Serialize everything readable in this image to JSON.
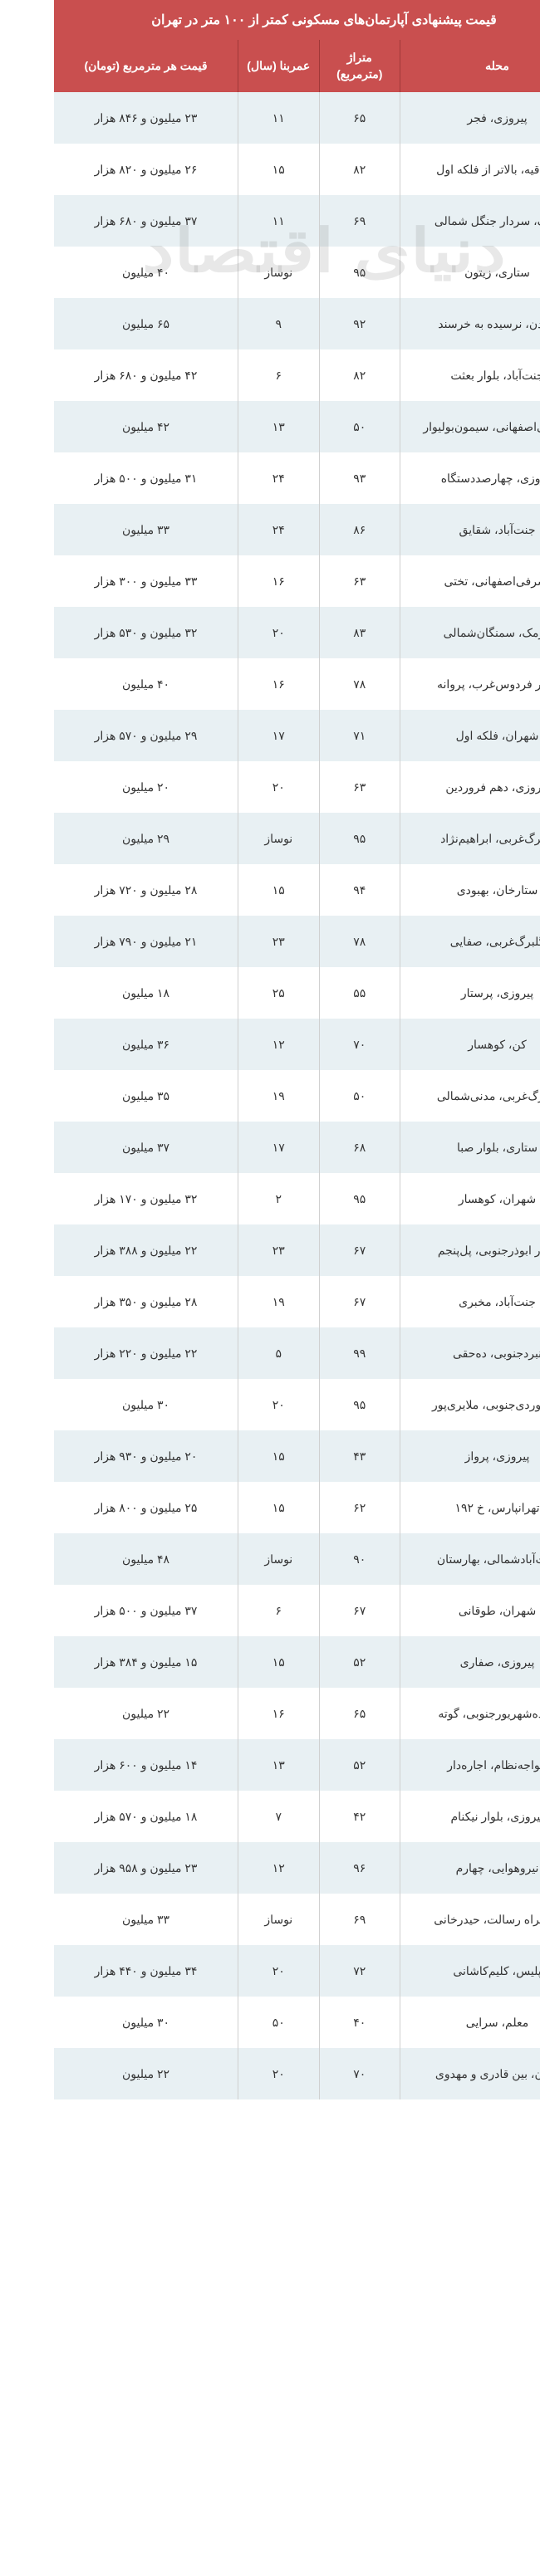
{
  "title": "قیمت پیشنهادی آپارتمان‌های مسکونی کمتر از ۱۰۰ متر در تهران",
  "watermark": "دنیای اقتصاد",
  "columns": {
    "mahale": "محله",
    "metraj": "متراژ (مترمربع)",
    "omr": "عمربنا (سال)",
    "gheymat": "قیمت هر مترمربع (تومان)"
  },
  "colors": {
    "header_bg": "#c94f4f",
    "header_text": "#ffffff",
    "row_odd": "#e8f0f3",
    "row_even": "#ffffff",
    "cell_text": "#333333",
    "border": "#d0d0d0"
  },
  "rows": [
    {
      "mahale": "پیروزی، فجر",
      "metraj": "۶۵",
      "omr": "۱۱",
      "gheymat": "۲۳ میلیون و ۸۴۶ هزار"
    },
    {
      "mahale": "صادقیه، بالاتر از فلکه اول",
      "metraj": "۸۲",
      "omr": "۱۵",
      "gheymat": "۲۶ میلیون و ۸۲۰ هزار"
    },
    {
      "mahale": "پونک، سردار جنگل شمالی",
      "metraj": "۶۹",
      "omr": "۱۱",
      "gheymat": "۳۷ میلیون و ۶۸۰ هزار"
    },
    {
      "mahale": "ستاری، زیتون",
      "metraj": "۹۵",
      "omr": "نوساز",
      "gheymat": "۴۰ میلیون"
    },
    {
      "mahale": "جردن، نرسیده به خرسند",
      "metraj": "۹۲",
      "omr": "۹",
      "gheymat": "۶۵ میلیون"
    },
    {
      "mahale": "جنت‌آباد، بلوار بعثت",
      "metraj": "۸۲",
      "omr": "۶",
      "gheymat": "۴۲ میلیون و ۶۸۰ هزار"
    },
    {
      "mahale": "اشرفی‌اصفهانی، سیمون‌بولیوار",
      "metraj": "۵۰",
      "omr": "۱۳",
      "gheymat": "۴۲ میلیون"
    },
    {
      "mahale": "پیروزی، چهارصددستگاه",
      "metraj": "۹۳",
      "omr": "۲۴",
      "gheymat": "۳۱ میلیون و ۵۰۰ هزار"
    },
    {
      "mahale": "جنت‌آباد، شقایق",
      "metraj": "۸۶",
      "omr": "۲۴",
      "gheymat": "۳۳ میلیون"
    },
    {
      "mahale": "اشرفی‌اصفهانی، تختی",
      "metraj": "۶۳",
      "omr": "۱۶",
      "gheymat": "۳۳ میلیون و ۳۰۰ هزار"
    },
    {
      "mahale": "نارمک، سمنگان‌شمالی",
      "metraj": "۸۳",
      "omr": "۲۰",
      "gheymat": "۳۲ میلیون و ۵۳۰ هزار"
    },
    {
      "mahale": "بلوار فردوس‌غرب، پروانه",
      "metraj": "۷۸",
      "omr": "۱۶",
      "gheymat": "۴۰ میلیون"
    },
    {
      "mahale": "شهران، فلکه اول",
      "metraj": "۷۱",
      "omr": "۱۷",
      "gheymat": "۲۹ میلیون و ۵۷۰ هزار"
    },
    {
      "mahale": "پیروزی، دهم فروردین",
      "metraj": "۶۳",
      "omr": "۲۰",
      "gheymat": "۲۰ میلیون"
    },
    {
      "mahale": "گلبرگ‌غربی، ابراهیم‌نژاد",
      "metraj": "۹۵",
      "omr": "نوساز",
      "gheymat": "۲۹ میلیون"
    },
    {
      "mahale": "ستارخان، بهبودی",
      "metraj": "۹۴",
      "omr": "۱۵",
      "gheymat": "۲۸ میلیون و ۷۲۰ هزار"
    },
    {
      "mahale": "گلبرگ‌غربی، صفایی",
      "metraj": "۷۸",
      "omr": "۲۳",
      "gheymat": "۲۱ میلیون و ۷۹۰ هزار"
    },
    {
      "mahale": "پیروزی، پرستار",
      "metraj": "۵۵",
      "omr": "۲۵",
      "gheymat": "۱۸ میلیون"
    },
    {
      "mahale": "کن، کوهسار",
      "metraj": "۷۰",
      "omr": "۱۲",
      "gheymat": "۳۶ میلیون"
    },
    {
      "mahale": "گلبرگ‌غربی، مدنی‌شمالی",
      "metraj": "۵۰",
      "omr": "۱۹",
      "gheymat": "۳۵ میلیون"
    },
    {
      "mahale": "ستاری، بلوار صبا",
      "metraj": "۶۸",
      "omr": "۱۷",
      "gheymat": "۳۷ میلیون"
    },
    {
      "mahale": "شهران، کوهسار",
      "metraj": "۹۵",
      "omr": "۲",
      "gheymat": "۳۲ میلیون و ۱۷۰ هزار"
    },
    {
      "mahale": "بلوار ابوذرجنوبی، پل‌پنجم",
      "metraj": "۶۷",
      "omr": "۲۳",
      "gheymat": "۲۲ میلیون و ۳۸۸ هزار"
    },
    {
      "mahale": "جنت‌آباد، مخبری",
      "metraj": "۶۷",
      "omr": "۱۹",
      "gheymat": "۲۸ میلیون و ۳۵۰ هزار"
    },
    {
      "mahale": "نبردجنوبی، ده‌حقی",
      "metraj": "۹۹",
      "omr": "۵",
      "gheymat": "۲۲ میلیون و ۲۲۰ هزار"
    },
    {
      "mahale": "سهروردی‌جنوبی، ملایری‌پور",
      "metraj": "۹۵",
      "omr": "۲۰",
      "gheymat": "۳۰ میلیون"
    },
    {
      "mahale": "پیروزی، پرواز",
      "metraj": "۴۳",
      "omr": "۱۵",
      "gheymat": "۲۰ میلیون و ۹۳۰ هزار"
    },
    {
      "mahale": "تهرانپارس، خ ۱۹۲",
      "metraj": "۶۲",
      "omr": "۱۵",
      "gheymat": "۲۵ میلیون و ۸۰۰ هزار"
    },
    {
      "mahale": "جنت‌آبادشمالی، بهارستان",
      "metraj": "۹۰",
      "omr": "نوساز",
      "gheymat": "۴۸ میلیون"
    },
    {
      "mahale": "شهران، طوقانی",
      "metraj": "۶۷",
      "omr": "۶",
      "gheymat": "۳۷ میلیون و ۵۰۰ هزار"
    },
    {
      "mahale": "پیروزی، صفاری",
      "metraj": "۵۲",
      "omr": "۱۵",
      "gheymat": "۱۵ میلیون و ۳۸۴ هزار"
    },
    {
      "mahale": "هفده‌شهریورجنوبی، گوته",
      "metraj": "۶۵",
      "omr": "۱۶",
      "gheymat": "۲۲ میلیون"
    },
    {
      "mahale": "خواجه‌نظام، اجاره‌دار",
      "metraj": "۵۲",
      "omr": "۱۳",
      "gheymat": "۱۴ میلیون و ۶۰۰ هزار"
    },
    {
      "mahale": "پیروزی، بلوار نیکنام",
      "metraj": "۴۲",
      "omr": "۷",
      "gheymat": "۱۸ میلیون و ۵۷۰ هزار"
    },
    {
      "mahale": "نیروهوایی، چهارم",
      "metraj": "۹۶",
      "omr": "۱۲",
      "gheymat": "۲۳ میلیون و ۹۵۸ هزار"
    },
    {
      "mahale": "بزرگراه رسالت، حیدرخانی",
      "metraj": "۶۹",
      "omr": "نوساز",
      "gheymat": "۳۳ میلیون"
    },
    {
      "mahale": "پلیس، کلیم‌کاشانی",
      "metraj": "۷۲",
      "omr": "۲۰",
      "gheymat": "۳۴ میلیون و ۴۴۰ هزار"
    },
    {
      "mahale": "معلم، سرایی",
      "metraj": "۴۰",
      "omr": "۵۰",
      "gheymat": "۳۰ میلیون"
    },
    {
      "mahale": "ایران، بین قادری و مهدوی",
      "metraj": "۷۰",
      "omr": "۲۰",
      "gheymat": "۲۲ میلیون"
    }
  ]
}
